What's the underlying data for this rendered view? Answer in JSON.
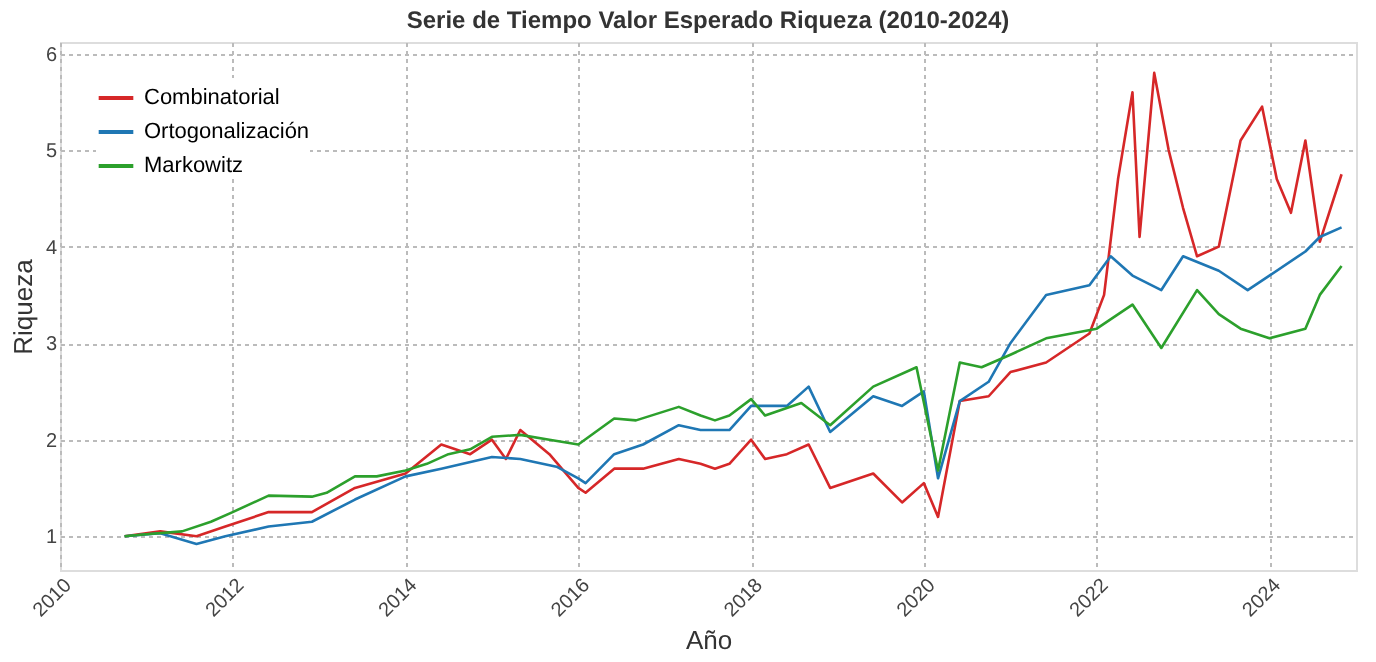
{
  "chart_data": {
    "type": "line",
    "title": "Serie de Tiempo Valor Esperado Riqueza (2010-2024)",
    "xlabel": "Año",
    "ylabel": "Riqueza",
    "xlim": [
      "2010-01-01",
      "2025-01-01"
    ],
    "xticks": [
      "2010",
      "2012",
      "2014",
      "2016",
      "2018",
      "2020",
      "2022",
      "2024"
    ],
    "ylim": [
      0.65,
      6.12
    ],
    "yticks": [
      1,
      2,
      3,
      4,
      5,
      6
    ],
    "grid": true,
    "legend": "top left",
    "line_style": "solid",
    "series": [
      {
        "name": "Combinatorial",
        "color": "#d62728",
        "x": [
          "2010-10",
          "2011-03",
          "2011-08",
          "2011-12",
          "2012-06",
          "2012-12",
          "2013-06",
          "2014-01",
          "2014-06",
          "2014-10",
          "2015-01",
          "2015-03",
          "2015-05",
          "2015-09",
          "2016-01",
          "2016-02",
          "2016-06",
          "2016-10",
          "2017-03",
          "2017-06",
          "2017-08",
          "2017-10",
          "2018-01",
          "2018-03",
          "2018-06",
          "2018-09",
          "2018-12",
          "2019-06",
          "2019-10",
          "2020-01",
          "2020-03",
          "2020-06",
          "2020-10",
          "2021-01",
          "2021-06",
          "2021-12",
          "2022-02",
          "2022-04",
          "2022-06",
          "2022-07",
          "2022-09",
          "2022-11",
          "2023-01",
          "2023-03",
          "2023-06",
          "2023-09",
          "2023-12",
          "2024-02",
          "2024-04",
          "2024-06",
          "2024-08",
          "2024-11"
        ],
        "values": [
          1.0,
          1.05,
          1.0,
          1.1,
          1.25,
          1.25,
          1.5,
          1.65,
          1.95,
          1.85,
          2.0,
          1.8,
          2.1,
          1.85,
          1.5,
          1.45,
          1.7,
          1.7,
          1.8,
          1.75,
          1.7,
          1.75,
          2.0,
          1.8,
          1.85,
          1.95,
          1.5,
          1.65,
          1.35,
          1.55,
          1.2,
          2.4,
          2.45,
          2.7,
          2.8,
          3.1,
          3.5,
          4.7,
          5.6,
          4.1,
          5.8,
          5.0,
          4.4,
          3.9,
          4.0,
          5.1,
          5.45,
          4.7,
          4.35,
          5.1,
          4.05,
          4.75
        ]
      },
      {
        "name": "Ortogonalización",
        "color": "#1f77b4",
        "x": [
          "2010-10",
          "2011-03",
          "2011-08",
          "2011-12",
          "2012-06",
          "2012-12",
          "2013-06",
          "2014-01",
          "2014-06",
          "2015-01",
          "2015-05",
          "2015-10",
          "2016-01",
          "2016-02",
          "2016-06",
          "2016-10",
          "2017-03",
          "2017-06",
          "2017-08",
          "2017-10",
          "2018-01",
          "2018-06",
          "2018-09",
          "2018-12",
          "2019-06",
          "2019-10",
          "2020-01",
          "2020-03",
          "2020-06",
          "2020-10",
          "2021-01",
          "2021-06",
          "2021-12",
          "2022-03",
          "2022-06",
          "2022-10",
          "2023-01",
          "2023-06",
          "2023-10",
          "2024-01",
          "2024-06",
          "2024-08",
          "2024-11"
        ],
        "values": [
          1.0,
          1.03,
          0.92,
          1.0,
          1.1,
          1.15,
          1.38,
          1.62,
          1.7,
          1.82,
          1.8,
          1.72,
          1.6,
          1.55,
          1.85,
          1.95,
          2.15,
          2.1,
          2.1,
          2.1,
          2.35,
          2.35,
          2.55,
          2.08,
          2.45,
          2.35,
          2.5,
          1.6,
          2.4,
          2.6,
          3.0,
          3.5,
          3.6,
          3.9,
          3.7,
          3.55,
          3.9,
          3.75,
          3.55,
          3.7,
          3.95,
          4.1,
          4.2
        ]
      },
      {
        "name": "Markowitz",
        "color": "#2ca02c",
        "x": [
          "2010-10",
          "2011-01",
          "2011-06",
          "2011-10",
          "2012-01",
          "2012-06",
          "2012-12",
          "2013-02",
          "2013-06",
          "2013-09",
          "2014-01",
          "2014-04",
          "2014-07",
          "2014-10",
          "2015-01",
          "2015-05",
          "2015-09",
          "2016-01",
          "2016-06",
          "2016-09",
          "2017-03",
          "2017-06",
          "2017-08",
          "2017-10",
          "2018-01",
          "2018-03",
          "2018-08",
          "2018-12",
          "2019-06",
          "2019-12",
          "2020-03",
          "2020-06",
          "2020-09",
          "2021-01",
          "2021-06",
          "2022-01",
          "2022-06",
          "2022-10",
          "2023-03",
          "2023-06",
          "2023-09",
          "2024-01",
          "2024-06",
          "2024-08",
          "2024-11"
        ],
        "values": [
          1.0,
          1.02,
          1.05,
          1.15,
          1.25,
          1.42,
          1.41,
          1.45,
          1.62,
          1.62,
          1.68,
          1.75,
          1.85,
          1.9,
          2.03,
          2.05,
          2.0,
          1.95,
          2.22,
          2.2,
          2.34,
          2.25,
          2.2,
          2.25,
          2.42,
          2.25,
          2.38,
          2.15,
          2.55,
          2.75,
          1.68,
          2.8,
          2.75,
          2.88,
          3.05,
          3.15,
          3.4,
          2.95,
          3.55,
          3.3,
          3.15,
          3.05,
          3.15,
          3.5,
          3.8
        ]
      }
    ]
  }
}
